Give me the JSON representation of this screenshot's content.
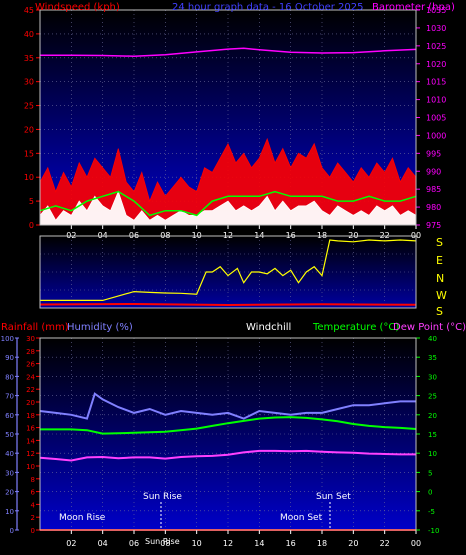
{
  "chart_data": [
    {
      "type": "line",
      "panel": "wind-barometer",
      "title": "24 hour graph data - 16 October 2025",
      "left_axis": {
        "label": "Windspeed (kph)",
        "range": [
          0,
          45
        ],
        "ticks": [
          "0",
          "5",
          "10",
          "15",
          "20",
          "25",
          "30",
          "35",
          "40",
          "45"
        ],
        "color": "#ff0000"
      },
      "right_axis": {
        "label": "Barometer (hpa)",
        "range": [
          975,
          1035
        ],
        "ticks": [
          "975",
          "980",
          "985",
          "990",
          "995",
          "1000",
          "1005",
          "1010",
          "1015",
          "1020",
          "1025",
          "1030",
          "1035"
        ],
        "color": "#ff00ff"
      },
      "x_ticks": [
        "02",
        "04",
        "06",
        "08",
        "10",
        "12",
        "14",
        "16",
        "18",
        "20",
        "22",
        "00"
      ],
      "x_range": [
        0,
        24
      ],
      "grid": true,
      "series": [
        {
          "color": "#ff00ff",
          "axis": "right",
          "x": [
            0,
            2,
            4,
            6,
            8,
            10,
            12,
            13,
            14,
            16,
            18,
            20,
            22,
            24
          ],
          "y": [
            1022.4,
            1022.4,
            1022.3,
            1022.1,
            1022.5,
            1023.3,
            1024.1,
            1024.3,
            1023.9,
            1023.2,
            1023.0,
            1023.1,
            1023.6,
            1024.0
          ]
        },
        {
          "color": "#ff0000",
          "axis": "left",
          "style": "gust-fill",
          "x": [
            0,
            0.5,
            1,
            1.5,
            2,
            2.5,
            3,
            3.5,
            4,
            4.5,
            5,
            5.5,
            6,
            6.5,
            7,
            7.5,
            8,
            8.5,
            9,
            9.5,
            10,
            10.5,
            11,
            11.5,
            12,
            12.5,
            13,
            13.5,
            14,
            14.5,
            15,
            15.5,
            16,
            16.5,
            17,
            17.5,
            18,
            18.5,
            19,
            19.5,
            20,
            20.5,
            21,
            21.5,
            22,
            22.5,
            23,
            23.5,
            24
          ],
          "y": [
            9,
            12,
            7,
            11,
            8,
            13,
            10,
            14,
            12,
            10,
            16,
            9,
            7,
            11,
            5,
            9,
            6,
            8,
            10,
            8,
            7,
            12,
            11,
            14,
            17,
            13,
            15,
            12,
            14,
            18,
            13,
            16,
            12,
            15,
            14,
            17,
            12,
            10,
            13,
            11,
            9,
            12,
            10,
            13,
            11,
            14,
            9,
            12,
            10
          ]
        },
        {
          "color": "#ffffff",
          "axis": "left",
          "style": "average-fill",
          "x": [
            0,
            0.5,
            1,
            1.5,
            2,
            2.5,
            3,
            3.5,
            4,
            4.5,
            5,
            5.5,
            6,
            6.5,
            7,
            7.5,
            8,
            8.5,
            9,
            9.5,
            10,
            10.5,
            11,
            11.5,
            12,
            12.5,
            13,
            13.5,
            14,
            14.5,
            15,
            15.5,
            16,
            16.5,
            17,
            17.5,
            18,
            18.5,
            19,
            19.5,
            20,
            20.5,
            21,
            21.5,
            22,
            22.5,
            23,
            23.5,
            24
          ],
          "y": [
            2,
            4,
            1,
            3,
            2,
            5,
            3,
            6,
            4,
            3,
            7,
            2,
            1,
            3,
            1,
            2,
            1,
            2,
            3,
            2,
            2,
            3,
            3,
            4,
            5,
            3,
            4,
            3,
            4,
            6,
            3,
            5,
            3,
            4,
            4,
            5,
            3,
            2,
            4,
            3,
            2,
            3,
            2,
            4,
            3,
            4,
            2,
            3,
            2
          ]
        },
        {
          "color": "#00ff00",
          "axis": "left",
          "x": [
            0,
            1,
            2,
            3,
            4,
            5,
            6,
            7,
            8,
            9,
            10,
            11,
            12,
            13,
            14,
            15,
            16,
            17,
            18,
            19,
            20,
            21,
            22,
            23,
            24
          ],
          "y": [
            3,
            4,
            3,
            5,
            6,
            7,
            5,
            2,
            3,
            3,
            2,
            5,
            6,
            6,
            6,
            7,
            6,
            6,
            6,
            5,
            5,
            6,
            5,
            5,
            6
          ]
        }
      ]
    },
    {
      "type": "line",
      "panel": "wind-direction",
      "direction_labels": [
        "S",
        "E",
        "N",
        "W",
        "S"
      ],
      "x_range": [
        0,
        24
      ],
      "series": [
        {
          "color": "#ffff00",
          "style": "direction",
          "x": [
            0,
            2,
            4,
            6,
            7,
            8,
            9,
            10,
            10.6,
            11,
            11.5,
            12,
            12.6,
            13,
            13.5,
            14,
            14.5,
            15,
            15.5,
            16,
            16.5,
            17,
            17.5,
            18,
            18.5,
            19,
            20,
            21,
            22,
            23,
            24
          ],
          "y": [
            200,
            200,
            200,
            250,
            245,
            242,
            240,
            235,
            0,
            360,
            30,
            340,
            20,
            300,
            360,
            0,
            350,
            20,
            340,
            10,
            300,
            360,
            30,
            340,
            180,
            175,
            170,
            180,
            175,
            180,
            175
          ]
        },
        {
          "color": "#ff0000",
          "style": "low-band",
          "x": [
            0,
            6,
            12,
            18,
            24
          ],
          "y": [
            10,
            12,
            8,
            11,
            9
          ]
        }
      ]
    },
    {
      "type": "line",
      "panel": "temperature-humidity",
      "labels": {
        "rainfall": "Rainfall (mm)",
        "humidity": "Humidity (%)",
        "windchill": "Windchill",
        "temperature": "Temperature (°C)",
        "dewpoint": "Dew Point (°C)"
      },
      "humidity_axis": {
        "range": [
          0,
          100
        ],
        "ticks": [
          "0",
          "10",
          "20",
          "30",
          "40",
          "50",
          "60",
          "70",
          "80",
          "90",
          "100"
        ],
        "color": "#8080ff"
      },
      "rain_axis": {
        "range": [
          0,
          30
        ],
        "ticks": [
          "0",
          "2",
          "4",
          "6",
          "8",
          "10",
          "12",
          "14",
          "16",
          "18",
          "20",
          "22",
          "24",
          "26",
          "28",
          "30"
        ],
        "color": "#ff0000"
      },
      "temp_axis": {
        "range": [
          -10,
          40
        ],
        "ticks": [
          "-10",
          "-5",
          "0",
          "5",
          "10",
          "15",
          "20",
          "25",
          "30",
          "35",
          "40"
        ],
        "color": "#00ff00"
      },
      "x_ticks": [
        "02",
        "04",
        "06",
        "08",
        "10",
        "12",
        "14",
        "16",
        "18",
        "20",
        "22",
        "00"
      ],
      "x_range": [
        0,
        24
      ],
      "annotations": {
        "moon_rise": "Moon Rise",
        "sun_rise": "Sun Rise",
        "sun_rise_time": "Sun Rise",
        "sun_set": "Sun Set",
        "moon_set": "Moon Set"
      },
      "series": [
        {
          "color": "#8080ff",
          "axis": "humidity",
          "x": [
            0,
            1,
            2,
            3,
            3.5,
            4,
            5,
            6,
            7,
            8,
            9,
            10,
            11,
            12,
            13,
            14,
            15,
            16,
            17,
            18,
            19,
            20,
            21,
            22,
            23,
            24
          ],
          "y": [
            62,
            61,
            60,
            58,
            71,
            68,
            64,
            61,
            63,
            60,
            62,
            61,
            60,
            61,
            58,
            62,
            61,
            60,
            61,
            61,
            63,
            65,
            65,
            66,
            67,
            67
          ]
        },
        {
          "color": "#00ff00",
          "axis": "temp",
          "x": [
            0,
            2,
            3,
            4,
            6,
            8,
            10,
            11,
            12,
            13,
            14,
            15,
            16,
            17,
            18,
            19,
            20,
            21,
            22,
            23,
            24
          ],
          "y": [
            16.2,
            16.2,
            16.0,
            15.1,
            15.3,
            15.6,
            16.4,
            17.1,
            17.8,
            18.4,
            19.0,
            19.3,
            19.4,
            19.2,
            18.8,
            18.3,
            17.6,
            17.1,
            16.8,
            16.6,
            16.3
          ]
        },
        {
          "color": "#ff40ff",
          "axis": "temp",
          "x": [
            0,
            1,
            2,
            3,
            4,
            5,
            6,
            7,
            8,
            9,
            10,
            11,
            12,
            13,
            14,
            15,
            16,
            17,
            18,
            19,
            20,
            21,
            22,
            23,
            24
          ],
          "y": [
            8.8,
            8.5,
            8.1,
            8.9,
            9.0,
            8.7,
            8.9,
            8.9,
            8.6,
            9.0,
            9.2,
            9.3,
            9.6,
            10.2,
            10.6,
            10.6,
            10.5,
            10.6,
            10.4,
            10.2,
            10.1,
            9.9,
            9.8,
            9.7,
            9.7
          ]
        },
        {
          "color": "#ff0000",
          "axis": "rain",
          "x": [
            0,
            24
          ],
          "y": [
            0,
            0
          ]
        }
      ]
    }
  ]
}
